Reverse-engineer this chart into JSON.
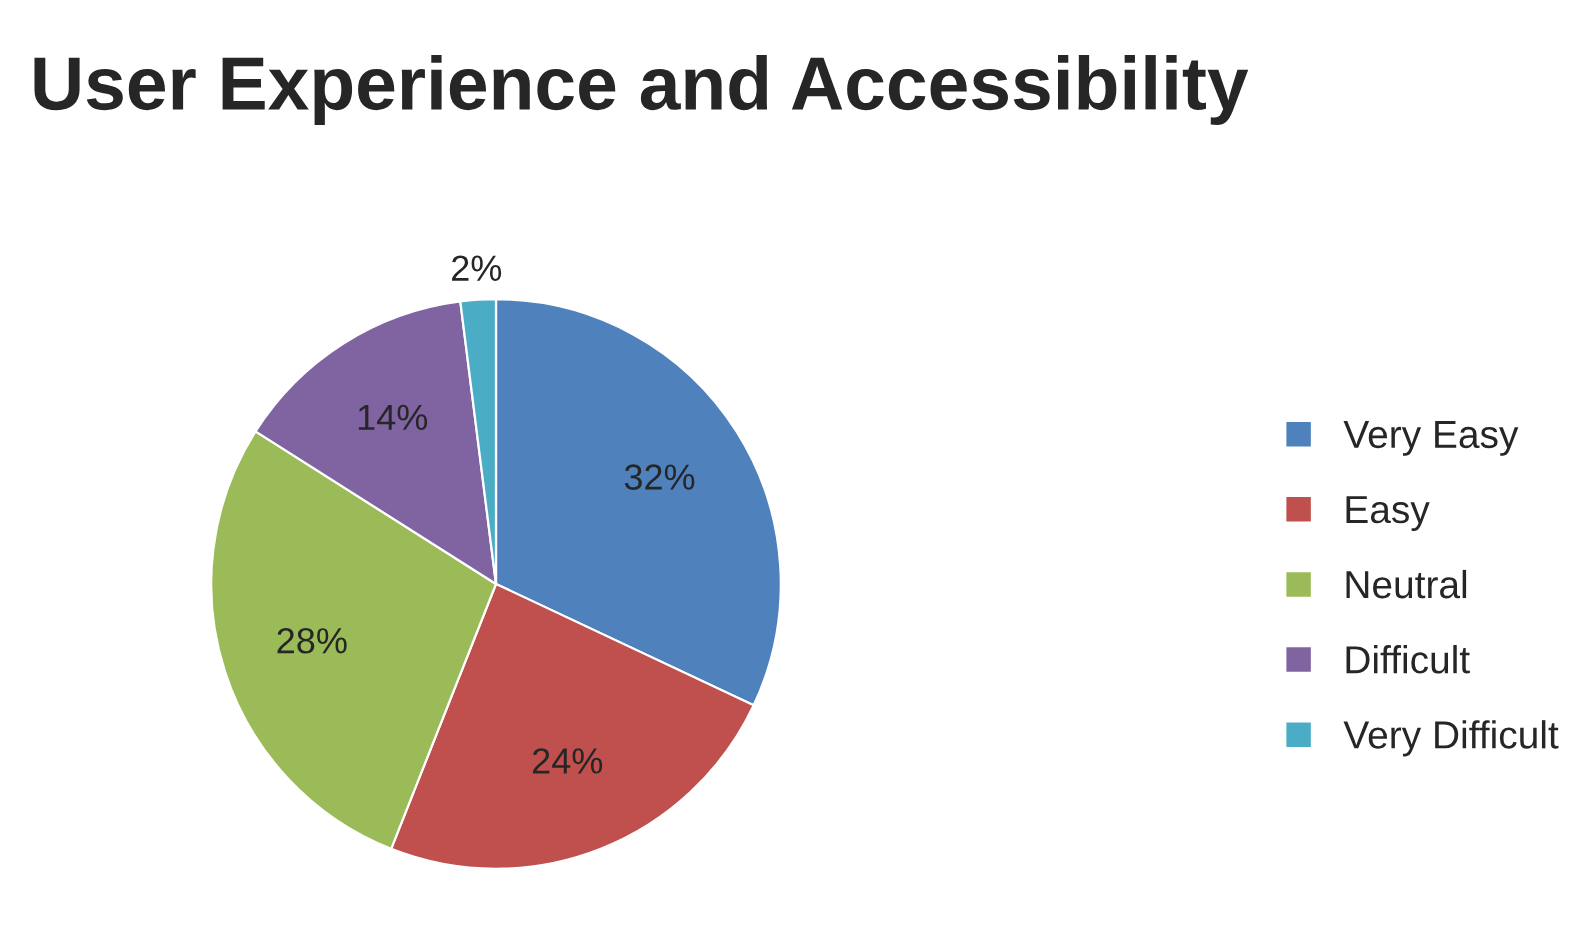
{
  "chart_data": {
    "type": "pie",
    "title": "User Experience and Accessibility",
    "categories": [
      "Very Easy",
      "Easy",
      "Neutral",
      "Difficult",
      "Very Difficult"
    ],
    "values": [
      32,
      24,
      28,
      14,
      2
    ],
    "colors": [
      "#4f81bd",
      "#c0504d",
      "#9bbb59",
      "#8064a2",
      "#4bacc6"
    ],
    "value_labels": [
      "32%",
      "24%",
      "28%",
      "14%",
      "2%"
    ],
    "legend": "right"
  }
}
